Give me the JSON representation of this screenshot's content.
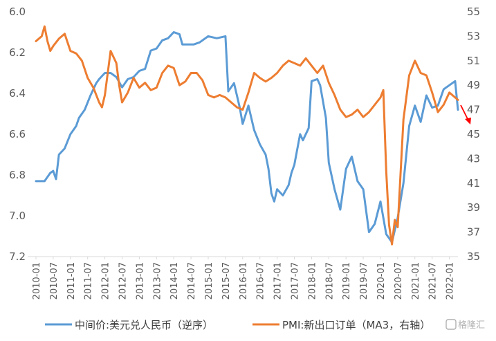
{
  "chart_data": {
    "type": "line",
    "x_ticks": [
      "2010-01",
      "2010-07",
      "2011-01",
      "2011-07",
      "2012-01",
      "2012-07",
      "2013-01",
      "2013-07",
      "2014-01",
      "2014-07",
      "2015-01",
      "2015-07",
      "2016-01",
      "2016-07",
      "2017-01",
      "2017-07",
      "2018-01",
      "2018-07",
      "2019-01",
      "2019-07",
      "2020-01",
      "2020-07",
      "2021-01",
      "2021-07",
      "2022-01"
    ],
    "y_left": {
      "min": 6.0,
      "max": 7.2,
      "inverted": true,
      "ticks": [
        "6.0",
        "6.2",
        "6.4",
        "6.6",
        "6.8",
        "7.0",
        "7.2"
      ]
    },
    "y_right": {
      "min": 35,
      "max": 55,
      "ticks": [
        "55",
        "53",
        "51",
        "49",
        "47",
        "45",
        "43",
        "41",
        "39",
        "37",
        "35"
      ]
    },
    "grid": false,
    "legend_position": "bottom",
    "series": [
      {
        "name": "中间价:美元兑人民币（逆序）",
        "axis": "left",
        "color": "#5B9BD5",
        "points": [
          [
            "2010-01",
            6.83
          ],
          [
            "2010-04",
            6.83
          ],
          [
            "2010-06",
            6.79
          ],
          [
            "2010-07",
            6.78
          ],
          [
            "2010-08",
            6.82
          ],
          [
            "2010-09",
            6.7
          ],
          [
            "2010-11",
            6.67
          ],
          [
            "2011-01",
            6.6
          ],
          [
            "2011-03",
            6.56
          ],
          [
            "2011-04",
            6.52
          ],
          [
            "2011-06",
            6.48
          ],
          [
            "2011-08",
            6.41
          ],
          [
            "2011-10",
            6.35
          ],
          [
            "2011-11",
            6.33
          ],
          [
            "2012-01",
            6.3
          ],
          [
            "2012-03",
            6.3
          ],
          [
            "2012-05",
            6.32
          ],
          [
            "2012-07",
            6.37
          ],
          [
            "2012-09",
            6.33
          ],
          [
            "2012-11",
            6.32
          ],
          [
            "2013-01",
            6.29
          ],
          [
            "2013-03",
            6.28
          ],
          [
            "2013-05",
            6.19
          ],
          [
            "2013-07",
            6.18
          ],
          [
            "2013-09",
            6.14
          ],
          [
            "2013-11",
            6.13
          ],
          [
            "2014-01",
            6.1
          ],
          [
            "2014-03",
            6.11
          ],
          [
            "2014-04",
            6.16
          ],
          [
            "2014-06",
            6.16
          ],
          [
            "2014-08",
            6.16
          ],
          [
            "2014-10",
            6.15
          ],
          [
            "2015-01",
            6.12
          ],
          [
            "2015-04",
            6.13
          ],
          [
            "2015-07",
            6.12
          ],
          [
            "2015-08",
            6.39
          ],
          [
            "2015-10",
            6.35
          ],
          [
            "2015-12",
            6.47
          ],
          [
            "2016-01",
            6.55
          ],
          [
            "2016-03",
            6.46
          ],
          [
            "2016-05",
            6.58
          ],
          [
            "2016-07",
            6.65
          ],
          [
            "2016-09",
            6.7
          ],
          [
            "2016-10",
            6.77
          ],
          [
            "2016-11",
            6.89
          ],
          [
            "2016-12",
            6.93
          ],
          [
            "2017-01",
            6.87
          ],
          [
            "2017-03",
            6.9
          ],
          [
            "2017-05",
            6.85
          ],
          [
            "2017-06",
            6.79
          ],
          [
            "2017-07",
            6.75
          ],
          [
            "2017-09",
            6.6
          ],
          [
            "2017-10",
            6.63
          ],
          [
            "2017-12",
            6.57
          ],
          [
            "2018-01",
            6.34
          ],
          [
            "2018-03",
            6.33
          ],
          [
            "2018-04",
            6.36
          ],
          [
            "2018-06",
            6.52
          ],
          [
            "2018-07",
            6.74
          ],
          [
            "2018-09",
            6.87
          ],
          [
            "2018-11",
            6.97
          ],
          [
            "2019-01",
            6.77
          ],
          [
            "2019-03",
            6.71
          ],
          [
            "2019-05",
            6.83
          ],
          [
            "2019-07",
            6.87
          ],
          [
            "2019-09",
            7.08
          ],
          [
            "2019-11",
            7.04
          ],
          [
            "2020-01",
            6.93
          ],
          [
            "2020-03",
            7.09
          ],
          [
            "2020-05",
            7.13
          ],
          [
            "2020-07",
            7.01
          ],
          [
            "2020-09",
            6.84
          ],
          [
            "2020-11",
            6.56
          ],
          [
            "2021-01",
            6.46
          ],
          [
            "2021-03",
            6.54
          ],
          [
            "2021-05",
            6.41
          ],
          [
            "2021-07",
            6.47
          ],
          [
            "2021-09",
            6.46
          ],
          [
            "2021-11",
            6.38
          ],
          [
            "2022-01",
            6.36
          ],
          [
            "2022-03",
            6.34
          ],
          [
            "2022-04",
            6.48
          ]
        ]
      },
      {
        "name": "PMI:新出口订单（MA3，右轴）",
        "axis": "right",
        "color": "#ED7D31",
        "points": [
          [
            "2010-01",
            52.6
          ],
          [
            "2010-03",
            53.0
          ],
          [
            "2010-04",
            53.8
          ],
          [
            "2010-05",
            52.6
          ],
          [
            "2010-06",
            51.8
          ],
          [
            "2010-07",
            52.2
          ],
          [
            "2010-09",
            52.8
          ],
          [
            "2010-11",
            53.2
          ],
          [
            "2011-01",
            51.8
          ],
          [
            "2011-03",
            51.6
          ],
          [
            "2011-05",
            51.0
          ],
          [
            "2011-07",
            49.6
          ],
          [
            "2011-09",
            48.8
          ],
          [
            "2011-11",
            47.6
          ],
          [
            "2011-12",
            47.2
          ],
          [
            "2012-01",
            48.2
          ],
          [
            "2012-03",
            51.8
          ],
          [
            "2012-05",
            50.8
          ],
          [
            "2012-06",
            49.0
          ],
          [
            "2012-07",
            47.6
          ],
          [
            "2012-09",
            48.4
          ],
          [
            "2012-11",
            49.6
          ],
          [
            "2013-01",
            48.8
          ],
          [
            "2013-03",
            49.2
          ],
          [
            "2013-05",
            48.6
          ],
          [
            "2013-07",
            48.8
          ],
          [
            "2013-09",
            50.0
          ],
          [
            "2013-11",
            50.6
          ],
          [
            "2014-01",
            50.4
          ],
          [
            "2014-03",
            49.0
          ],
          [
            "2014-05",
            49.3
          ],
          [
            "2014-07",
            50.0
          ],
          [
            "2014-09",
            50.0
          ],
          [
            "2014-11",
            49.4
          ],
          [
            "2015-01",
            48.2
          ],
          [
            "2015-03",
            48.0
          ],
          [
            "2015-05",
            48.2
          ],
          [
            "2015-07",
            48.0
          ],
          [
            "2015-09",
            47.6
          ],
          [
            "2015-11",
            47.2
          ],
          [
            "2016-01",
            47.0
          ],
          [
            "2016-03",
            48.4
          ],
          [
            "2016-05",
            50.0
          ],
          [
            "2016-07",
            49.6
          ],
          [
            "2016-09",
            49.3
          ],
          [
            "2016-11",
            49.6
          ],
          [
            "2017-01",
            50.0
          ],
          [
            "2017-03",
            50.6
          ],
          [
            "2017-05",
            51.0
          ],
          [
            "2017-07",
            50.8
          ],
          [
            "2017-09",
            50.6
          ],
          [
            "2017-11",
            51.2
          ],
          [
            "2018-01",
            50.6
          ],
          [
            "2018-03",
            50.0
          ],
          [
            "2018-05",
            50.6
          ],
          [
            "2018-07",
            49.2
          ],
          [
            "2018-09",
            48.2
          ],
          [
            "2018-11",
            47.0
          ],
          [
            "2019-01",
            46.4
          ],
          [
            "2019-03",
            46.6
          ],
          [
            "2019-05",
            47.0
          ],
          [
            "2019-07",
            46.4
          ],
          [
            "2019-09",
            46.8
          ],
          [
            "2019-11",
            47.4
          ],
          [
            "2020-01",
            48.0
          ],
          [
            "2020-02",
            48.6
          ],
          [
            "2020-03",
            42.0
          ],
          [
            "2020-04",
            37.6
          ],
          [
            "2020-05",
            36.0
          ],
          [
            "2020-06",
            38.0
          ],
          [
            "2020-07",
            37.4
          ],
          [
            "2020-09",
            46.2
          ],
          [
            "2020-11",
            49.8
          ],
          [
            "2021-01",
            51.0
          ],
          [
            "2021-03",
            50.0
          ],
          [
            "2021-05",
            49.8
          ],
          [
            "2021-07",
            48.4
          ],
          [
            "2021-09",
            46.8
          ],
          [
            "2021-11",
            47.4
          ],
          [
            "2022-01",
            48.4
          ],
          [
            "2022-03",
            48.0
          ],
          [
            "2022-04",
            47.8
          ]
        ]
      }
    ],
    "annotation": {
      "type": "arrow",
      "color": "#FF0000",
      "meaning": "downward trend"
    }
  },
  "legend": {
    "series1": "中间价:美元兑人民币（逆序）",
    "series2": "PMI:新出口订单（MA3，右轴）"
  },
  "watermark": "格隆汇"
}
